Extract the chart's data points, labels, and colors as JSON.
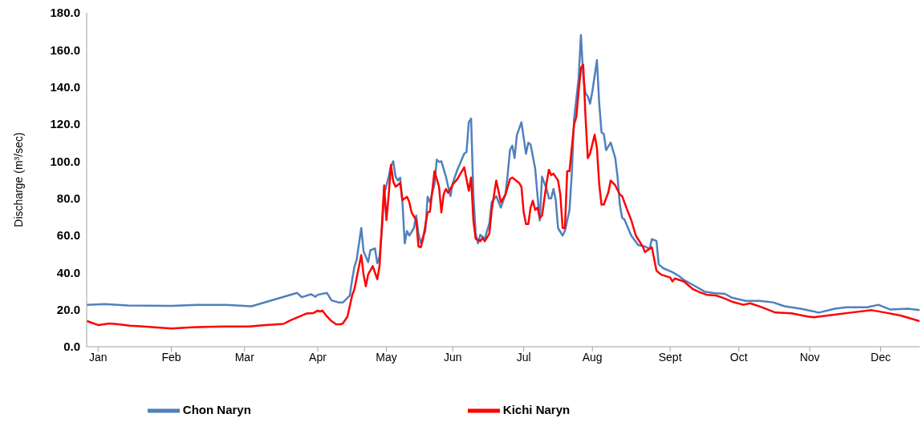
{
  "chart_data": {
    "type": "line",
    "ylabel": "Discharge (m³/sec)",
    "legend": "bottom",
    "xlim": [
      "--01-01",
      "--12-31"
    ],
    "xticks": [
      {
        "value": "--01-06",
        "label": "Jan"
      },
      {
        "value": "--02-07",
        "label": "Feb"
      },
      {
        "value": "--03-11",
        "label": "Mar"
      },
      {
        "value": "--04-12",
        "label": "Apr"
      },
      {
        "value": "--05-12",
        "label": "May"
      },
      {
        "value": "--06-10",
        "label": "Jun"
      },
      {
        "value": "--07-11",
        "label": "Jul"
      },
      {
        "value": "--08-10",
        "label": "Aug"
      },
      {
        "value": "--09-13",
        "label": "Sept"
      },
      {
        "value": "--10-13",
        "label": "Oct"
      },
      {
        "value": "--11-13",
        "label": "Nov"
      },
      {
        "value": "--12-14",
        "label": "Dec"
      }
    ],
    "ylim": [
      0,
      180
    ],
    "yticks": [
      {
        "value": 0,
        "label": "0.0"
      },
      {
        "value": 20,
        "label": "20.0"
      },
      {
        "value": 40,
        "label": "40.0"
      },
      {
        "value": 60,
        "label": "60.0"
      },
      {
        "value": 80,
        "label": "80.0"
      },
      {
        "value": 100,
        "label": "100.0"
      },
      {
        "value": 120,
        "label": "120.0"
      },
      {
        "value": 140,
        "label": "140.0"
      },
      {
        "value": 160,
        "label": "160.0"
      },
      {
        "value": 180,
        "label": "180.0"
      }
    ],
    "series": [
      {
        "name": "Chon Naryn",
        "color": "#4f81bd",
        "x": [
          "--01-01",
          "--01-09",
          "--01-19",
          "--02-07",
          "--02-18",
          "--03-03",
          "--03-14",
          "--04-03",
          "--04-05",
          "--04-09",
          "--04-11",
          "--04-12",
          "--04-16",
          "--04-18",
          "--04-21",
          "--04-23",
          "--04-26",
          "--04-27",
          "--04-28",
          "--04-29",
          "--05-01",
          "--05-02",
          "--05-04",
          "--05-05",
          "--05-07",
          "--05-08",
          "--05-09",
          "--05-10",
          "--05-11",
          "--05-13",
          "--05-14",
          "--05-15",
          "--05-16",
          "--05-17",
          "--05-18",
          "--05-19",
          "--05-20",
          "--05-21",
          "--05-22",
          "--05-24",
          "--05-25",
          "--05-26",
          "--05-27",
          "--05-29",
          "--05-30",
          "--05-31",
          "--06-02",
          "--06-03",
          "--06-04",
          "--06-05",
          "--06-07",
          "--06-08",
          "--06-09",
          "--06-10",
          "--06-12",
          "--06-15",
          "--06-16",
          "--06-17",
          "--06-18",
          "--06-19",
          "--06-20",
          "--06-21",
          "--06-22",
          "--06-24",
          "--06-26",
          "--06-27",
          "--06-29",
          "--07-01",
          "--07-03",
          "--07-04",
          "--07-05",
          "--07-06",
          "--07-07",
          "--07-08",
          "--07-10",
          "--07-12",
          "--07-13",
          "--07-14",
          "--07-16",
          "--07-17",
          "--07-18",
          "--07-19",
          "--07-21",
          "--07-22",
          "--07-23",
          "--07-24",
          "--07-25",
          "--07-26",
          "--07-28",
          "--07-29",
          "--07-31",
          "--08-01",
          "--08-02",
          "--08-04",
          "--08-05",
          "--08-06",
          "--08-07",
          "--08-08",
          "--08-09",
          "--08-10",
          "--08-12",
          "--08-13",
          "--08-14",
          "--08-15",
          "--08-16",
          "--08-18",
          "--08-20",
          "--08-21",
          "--08-22",
          "--08-23",
          "--08-24",
          "--08-27",
          "--08-30",
          "--09-02",
          "--09-04",
          "--09-05",
          "--09-07",
          "--09-08",
          "--09-10",
          "--09-14",
          "--09-17",
          "--09-19",
          "--09-24",
          "--09-28",
          "--10-02",
          "--10-07",
          "--10-10",
          "--10-16",
          "--10-22",
          "--10-28",
          "--11-02",
          "--11-09",
          "--11-17",
          "--11-24",
          "--11-29",
          "--12-08",
          "--12-13",
          "--12-18",
          "--12-26",
          "--12-31"
        ],
        "values": [
          22.6,
          23.0,
          22.2,
          22.0,
          22.6,
          22.6,
          21.8,
          29.0,
          26.7,
          28.3,
          26.9,
          28.0,
          29.0,
          25.0,
          23.9,
          23.9,
          27.6,
          36,
          43,
          47,
          64,
          51.5,
          45.6,
          52,
          53,
          45,
          48.5,
          62.4,
          82,
          91.7,
          97.5,
          100,
          91.7,
          89.6,
          91.2,
          77.9,
          55.7,
          62.4,
          59.9,
          64,
          70.7,
          61,
          56,
          62.4,
          80.8,
          77.9,
          87.5,
          100.9,
          99.6,
          100,
          91.7,
          86.2,
          81.2,
          88.3,
          95.4,
          104,
          105,
          121,
          123,
          82,
          61,
          55.7,
          60.3,
          58.2,
          66.6,
          77.9,
          81.2,
          75,
          82,
          93,
          106,
          108.4,
          101.7,
          114,
          121,
          104,
          110,
          109,
          96,
          82,
          68,
          91.7,
          85,
          80,
          80,
          85,
          79,
          64,
          59.9,
          62.4,
          73.7,
          93,
          122.6,
          144.8,
          168,
          146,
          136.5,
          135,
          131,
          137.7,
          154.5,
          131,
          115.5,
          114.7,
          106,
          110,
          101.7,
          91.7,
          76.6,
          69.5,
          68.6,
          59.9,
          54.8,
          54,
          52.7,
          58,
          57,
          44.4,
          42.3,
          40.2,
          38,
          36,
          32.6,
          29.7,
          28.9,
          28.5,
          26.4,
          24.7,
          24.7,
          23.9,
          21.8,
          20.5,
          18.4,
          20.5,
          21.3,
          21.3,
          22.6,
          20.1,
          20.5,
          19.7
        ]
      },
      {
        "name": "Kichi Naryn",
        "color": "#ff0000",
        "x": [
          "--01-01",
          "--01-06",
          "--01-11",
          "--01-15",
          "--01-20",
          "--01-26",
          "--02-07",
          "--02-16",
          "--03-02",
          "--03-13",
          "--03-20",
          "--03-28",
          "--03-31",
          "--04-07",
          "--04-10",
          "--04-12",
          "--04-13",
          "--04-14",
          "--04-16",
          "--04-18",
          "--04-20",
          "--04-22",
          "--04-23",
          "--04-25",
          "--04-27",
          "--04-28",
          "--05-01",
          "--05-02",
          "--05-03",
          "--05-04",
          "--05-06",
          "--05-08",
          "--05-09",
          "--05-11",
          "--05-12",
          "--05-13",
          "--05-14",
          "--05-15",
          "--05-16",
          "--05-18",
          "--05-19",
          "--05-21",
          "--05-22",
          "--05-23",
          "--05-25",
          "--05-26",
          "--05-27",
          "--05-28",
          "--05-30",
          "--05-31",
          "--06-02",
          "--06-04",
          "--06-05",
          "--06-06",
          "--06-07",
          "--06-08",
          "--06-10",
          "--06-12",
          "--06-15",
          "--06-17",
          "--06-18",
          "--06-19",
          "--06-20",
          "--06-22",
          "--06-23",
          "--06-24",
          "--06-26",
          "--06-27",
          "--06-29",
          "--07-01",
          "--07-03",
          "--07-05",
          "--07-06",
          "--07-09",
          "--07-10",
          "--07-11",
          "--07-12",
          "--07-13",
          "--07-14",
          "--07-15",
          "--07-16",
          "--07-17",
          "--07-18",
          "--07-19",
          "--07-21",
          "--07-22",
          "--07-23",
          "--07-24",
          "--07-26",
          "--07-27",
          "--07-28",
          "--07-29",
          "--07-30",
          "--07-31",
          "--08-02",
          "--08-03",
          "--08-04",
          "--08-05",
          "--08-06",
          "--08-07",
          "--08-08",
          "--08-09",
          "--08-11",
          "--08-12",
          "--08-13",
          "--08-14",
          "--08-15",
          "--08-17",
          "--08-18",
          "--08-20",
          "--08-22",
          "--08-23",
          "--08-25",
          "--08-27",
          "--08-29",
          "--09-01",
          "--09-02",
          "--09-05",
          "--09-07",
          "--09-09",
          "--09-13",
          "--09-14",
          "--09-15",
          "--09-19",
          "--09-23",
          "--09-26",
          "--09-29",
          "--10-03",
          "--10-06",
          "--10-10",
          "--10-15",
          "--10-18",
          "--10-23",
          "--10-29",
          "--11-05",
          "--11-12",
          "--11-15",
          "--11-23",
          "--12-01",
          "--12-10",
          "--12-16",
          "--12-23",
          "--12-31"
        ],
        "values": [
          13.9,
          11.7,
          12.5,
          12.1,
          11.3,
          10.9,
          9.8,
          10.5,
          10.9,
          10.9,
          11.7,
          12.3,
          14.2,
          17.9,
          18.1,
          19.5,
          19.0,
          19.5,
          16.3,
          13.8,
          12.1,
          12.1,
          12.6,
          16.3,
          27.6,
          31,
          49.4,
          38.9,
          32.6,
          38.9,
          43.5,
          36.4,
          43.5,
          87,
          68.2,
          82,
          98,
          89,
          86.2,
          88.3,
          79,
          80.8,
          77.9,
          72.4,
          68.2,
          54,
          53.6,
          58.2,
          72.4,
          72.8,
          94.6,
          86.2,
          72.4,
          82,
          85,
          82.9,
          87.5,
          90.4,
          96.7,
          84.1,
          91.2,
          68.2,
          58.2,
          56.9,
          58.6,
          56.9,
          61,
          73.7,
          89.6,
          77.9,
          82,
          90.4,
          91.2,
          88.3,
          86.2,
          72.4,
          66.1,
          66.1,
          75,
          78.7,
          73.7,
          75,
          69.5,
          70.7,
          88.3,
          95.4,
          92.5,
          93.3,
          89.6,
          82,
          64,
          64,
          94.6,
          94.6,
          119.7,
          124,
          137.7,
          150.3,
          152,
          124,
          101.7,
          104.2,
          114.3,
          107,
          87.5,
          76.6,
          76.6,
          83.3,
          89.6,
          87,
          82,
          81.2,
          74.5,
          68.2,
          59.9,
          54,
          51,
          53.6,
          41,
          38.9,
          37.3,
          35.2,
          36.8,
          35.2,
          31,
          29.3,
          28,
          27.6,
          26.4,
          24.3,
          22.6,
          23.4,
          21.3,
          18.4,
          18,
          16.3,
          15.9,
          17.2,
          18.4,
          19.7,
          18.4,
          16.7,
          13.8
        ]
      }
    ]
  }
}
